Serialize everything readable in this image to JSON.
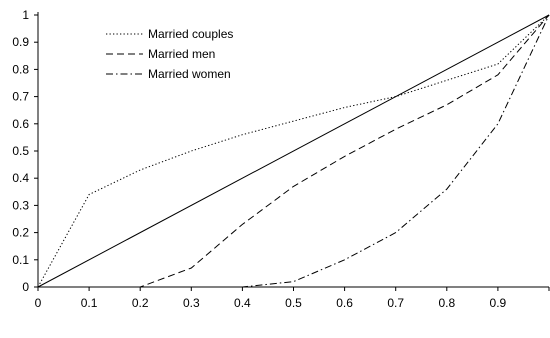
{
  "chart_data": {
    "type": "line",
    "title": "",
    "xlabel": "",
    "ylabel": "",
    "xlim": [
      0,
      1
    ],
    "ylim": [
      0,
      1
    ],
    "x_ticks": [
      "0",
      "0.1",
      "0.2",
      "0.3",
      "0.4",
      "0.5",
      "0.6",
      "0.7",
      "0.8",
      "0.9"
    ],
    "y_ticks": [
      "0",
      "0.1",
      "0.2",
      "0.3",
      "0.4",
      "0.5",
      "0.6",
      "0.7",
      "0.8",
      "0.9",
      "1"
    ],
    "grid": false,
    "legend_position": "top-left",
    "series": [
      {
        "name": "",
        "style": "solid",
        "color": "#000000",
        "x": [
          0,
          1
        ],
        "y": [
          0,
          1
        ]
      },
      {
        "name": "Married couples",
        "style": "dotted",
        "color": "#000000",
        "x": [
          0,
          0.1,
          0.2,
          0.3,
          0.4,
          0.5,
          0.6,
          0.7,
          0.8,
          0.9,
          1
        ],
        "y": [
          0,
          0.34,
          0.43,
          0.5,
          0.56,
          0.61,
          0.66,
          0.7,
          0.76,
          0.82,
          1
        ]
      },
      {
        "name": "Married men",
        "style": "dashed",
        "color": "#000000",
        "x": [
          0,
          0.1,
          0.2,
          0.3,
          0.4,
          0.5,
          0.6,
          0.7,
          0.8,
          0.9,
          1
        ],
        "y": [
          0,
          0,
          0,
          0.07,
          0.23,
          0.37,
          0.48,
          0.58,
          0.67,
          0.78,
          1
        ]
      },
      {
        "name": "Married women",
        "style": "dashdot",
        "color": "#000000",
        "x": [
          0,
          0.1,
          0.2,
          0.3,
          0.4,
          0.5,
          0.6,
          0.7,
          0.8,
          0.9,
          1
        ],
        "y": [
          0,
          0,
          0,
          0,
          0,
          0.02,
          0.1,
          0.2,
          0.36,
          0.6,
          1
        ]
      }
    ]
  }
}
